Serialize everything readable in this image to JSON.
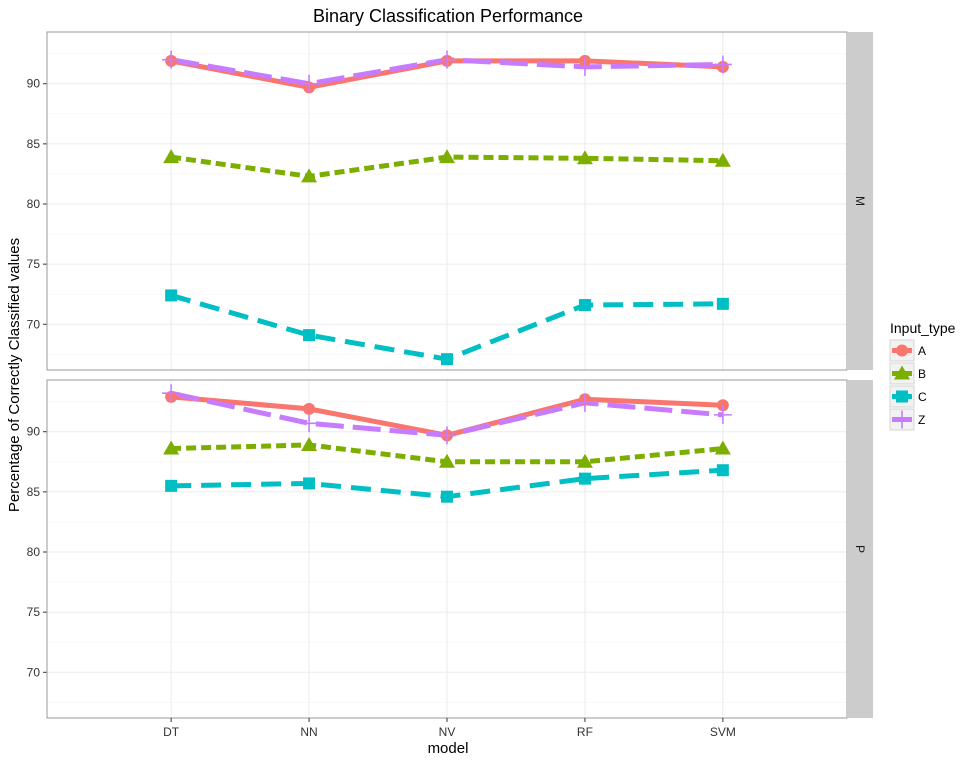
{
  "chart_data": {
    "type": "line",
    "title": "Binary Classification Performance",
    "xlabel": "model",
    "ylabel": "Percentage of Correctly Classified values",
    "categories": [
      "DT",
      "NN",
      "NV",
      "RF",
      "SVM"
    ],
    "y_ticks": [
      70,
      75,
      80,
      85,
      90
    ],
    "grid": true,
    "legend": {
      "title": "Input_type",
      "placement": "right",
      "entries": [
        "A",
        "B",
        "C",
        "Z"
      ]
    },
    "panels": [
      {
        "label": "M",
        "ylim": [
          66.2,
          94.3
        ],
        "series": [
          {
            "name": "A",
            "color": "#F8766D",
            "marker": "circle",
            "line": "solid",
            "values": [
              91.9,
              89.7,
              91.9,
              91.9,
              91.4
            ]
          },
          {
            "name": "B",
            "color": "#7CAE00",
            "marker": "triangle",
            "line": "dotted",
            "values": [
              83.9,
              82.3,
              83.9,
              83.8,
              83.6
            ]
          },
          {
            "name": "C",
            "color": "#00BFC4",
            "marker": "square",
            "line": "dashed",
            "values": [
              72.4,
              69.1,
              67.1,
              71.6,
              71.7
            ]
          },
          {
            "name": "Z",
            "color": "#C77CFF",
            "marker": "plus",
            "line": "longdash",
            "values": [
              92.0,
              90.0,
              92.0,
              91.4,
              91.6
            ]
          }
        ]
      },
      {
        "label": "P",
        "ylim": [
          66.2,
          94.3
        ],
        "series": [
          {
            "name": "A",
            "color": "#F8766D",
            "marker": "circle",
            "line": "solid",
            "values": [
              92.9,
              91.9,
              89.7,
              92.7,
              92.2
            ]
          },
          {
            "name": "B",
            "color": "#7CAE00",
            "marker": "triangle",
            "line": "dotted",
            "values": [
              88.6,
              88.9,
              87.5,
              87.5,
              88.6
            ]
          },
          {
            "name": "C",
            "color": "#00BFC4",
            "marker": "square",
            "line": "dashed",
            "values": [
              85.5,
              85.7,
              84.6,
              86.1,
              86.8
            ]
          },
          {
            "name": "Z",
            "color": "#C77CFF",
            "marker": "plus",
            "line": "longdash",
            "values": [
              93.2,
              90.7,
              89.7,
              92.4,
              91.4
            ]
          }
        ]
      }
    ]
  }
}
